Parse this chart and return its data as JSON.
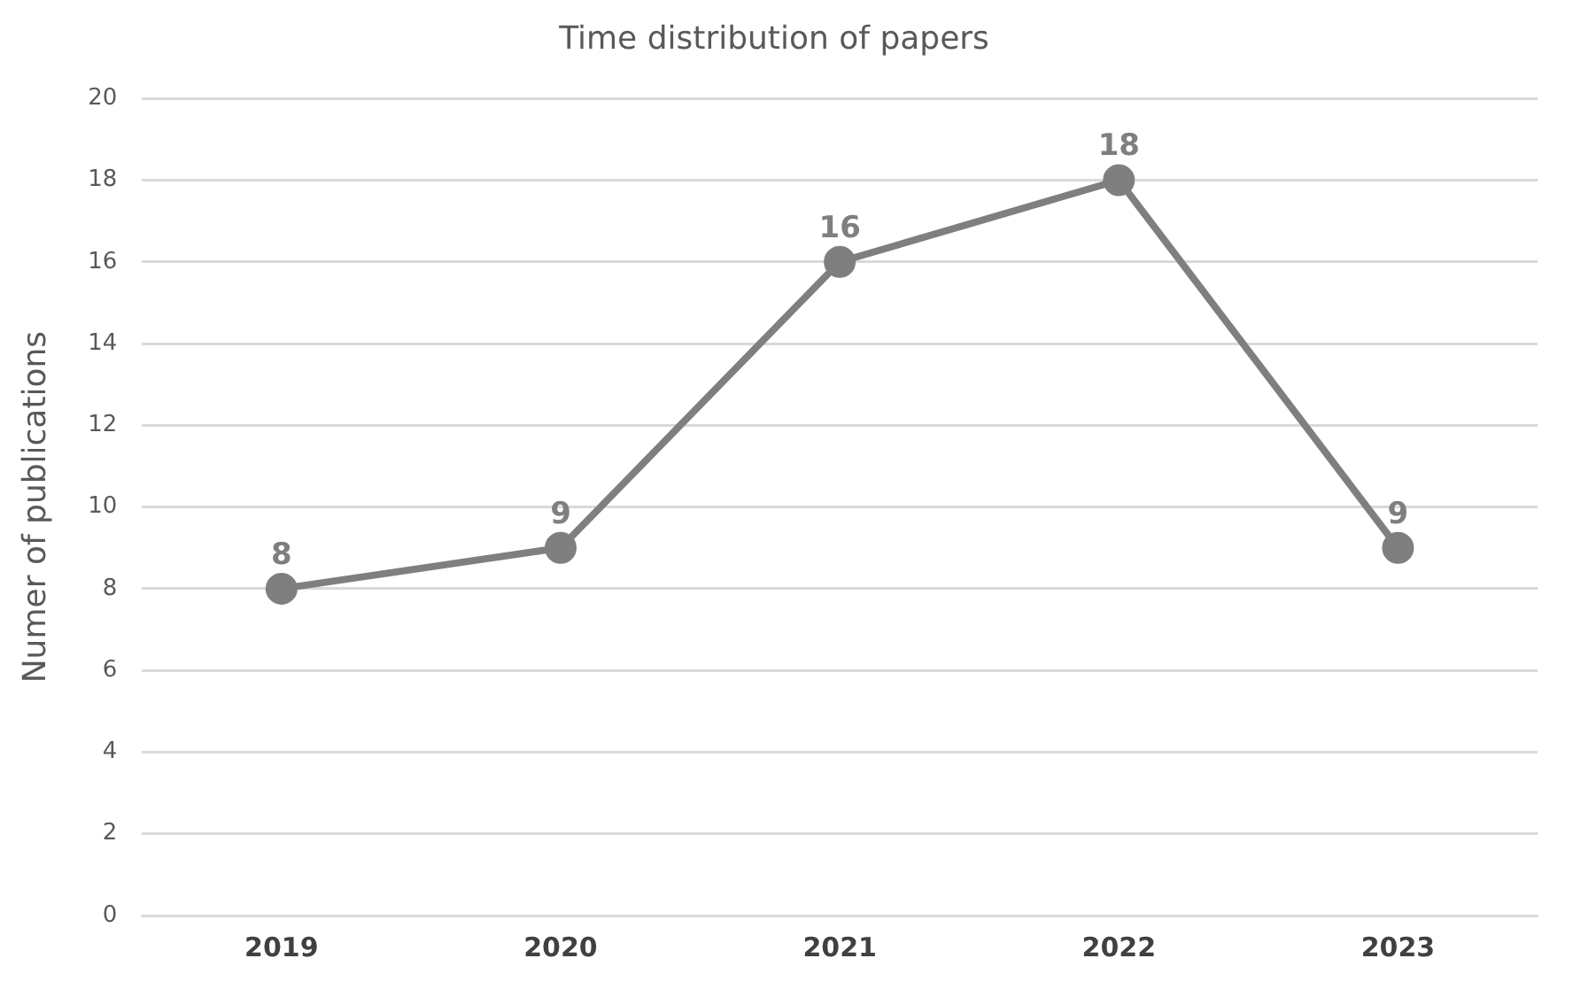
{
  "chart_data": {
    "type": "line",
    "title": "Time distribution of papers",
    "ylabel": "Numer of publications",
    "categories": [
      "2019",
      "2020",
      "2021",
      "2022",
      "2023"
    ],
    "series": [
      {
        "color": "#7f7f7f",
        "values": [
          8,
          9,
          16,
          18,
          9
        ]
      }
    ],
    "ylim": [
      0,
      20
    ],
    "yticks": [
      0,
      2,
      4,
      6,
      8,
      10,
      12,
      14,
      16,
      18,
      20
    ],
    "grid": "y",
    "legend": false,
    "marker": "circle",
    "line_style": "solid",
    "data_labels": true
  }
}
